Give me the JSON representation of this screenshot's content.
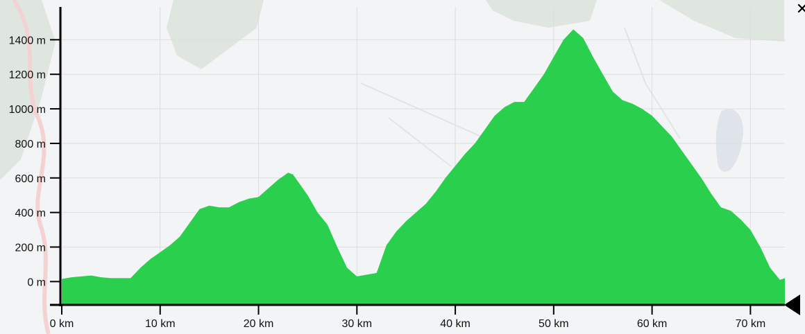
{
  "controls": {
    "close_glyph": "✕",
    "close_icon": "close-icon",
    "end_marker_icon": "triangle-left-icon"
  },
  "colors": {
    "fill": "#29cf4d",
    "axis": "#000000",
    "grid": "#dcdde0",
    "background": "#f3f4f5"
  },
  "chart_data": {
    "type": "area",
    "title": "",
    "xlabel": "",
    "ylabel": "",
    "x_unit": "km",
    "y_unit": "m",
    "xlim": [
      0,
      73.5
    ],
    "ylim": [
      -135,
      1590
    ],
    "grid": true,
    "legend": "none",
    "x_ticks": [
      {
        "value": 0,
        "label": "0 km"
      },
      {
        "value": 10,
        "label": "10 km"
      },
      {
        "value": 20,
        "label": "20 km"
      },
      {
        "value": 30,
        "label": "30 km"
      },
      {
        "value": 40,
        "label": "40 km"
      },
      {
        "value": 50,
        "label": "50 km"
      },
      {
        "value": 60,
        "label": "60 km"
      },
      {
        "value": 70,
        "label": "70 km"
      }
    ],
    "y_ticks": [
      {
        "value": 0,
        "label": "0 m"
      },
      {
        "value": 200,
        "label": "200 m"
      },
      {
        "value": 400,
        "label": "400 m"
      },
      {
        "value": 600,
        "label": "600 m"
      },
      {
        "value": 800,
        "label": "800 m"
      },
      {
        "value": 1000,
        "label": "1000 m"
      },
      {
        "value": 1200,
        "label": "1200 m"
      },
      {
        "value": 1400,
        "label": "1400 m"
      }
    ],
    "x": [
      0,
      1,
      2,
      3,
      4,
      5,
      6,
      7,
      8,
      9,
      10,
      11,
      12,
      13,
      14,
      15,
      16,
      17,
      18,
      19,
      20,
      21,
      22,
      23,
      23.5,
      24,
      25,
      26,
      27,
      28,
      29,
      30,
      31,
      32,
      33,
      34,
      35,
      36,
      37,
      38,
      39,
      40,
      41,
      42,
      43,
      44,
      45,
      46,
      47,
      48,
      49,
      50,
      51,
      52,
      53,
      54,
      55,
      56,
      57,
      58,
      59,
      60,
      61,
      62,
      63,
      64,
      65,
      66,
      67,
      68,
      69,
      70,
      71,
      72,
      73,
      73.5
    ],
    "series": [
      {
        "values": [
          15,
          25,
          30,
          35,
          25,
          20,
          20,
          20,
          80,
          130,
          170,
          210,
          260,
          340,
          420,
          440,
          430,
          430,
          460,
          480,
          490,
          540,
          590,
          630,
          620,
          580,
          500,
          400,
          330,
          200,
          80,
          30,
          40,
          50,
          210,
          290,
          350,
          400,
          450,
          520,
          600,
          670,
          740,
          800,
          880,
          960,
          1010,
          1040,
          1040,
          1120,
          1200,
          1300,
          1400,
          1460,
          1410,
          1300,
          1200,
          1100,
          1050,
          1030,
          1000,
          960,
          900,
          840,
          760,
          680,
          600,
          510,
          430,
          410,
          360,
          300,
          200,
          80,
          10,
          20
        ]
      }
    ]
  }
}
